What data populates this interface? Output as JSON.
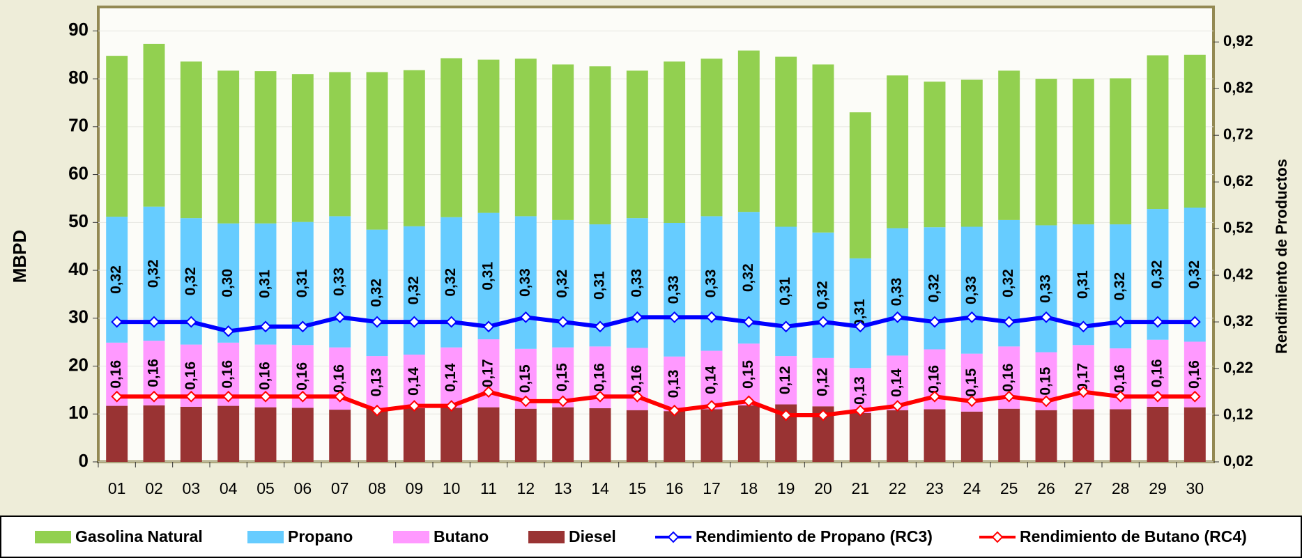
{
  "chart_data": {
    "type": "bar",
    "stacked": true,
    "y_label": "MBPD",
    "y2_label": "Rendimiento de Productos",
    "categories": [
      "01",
      "02",
      "03",
      "04",
      "05",
      "06",
      "07",
      "08",
      "09",
      "10",
      "11",
      "12",
      "13",
      "14",
      "15",
      "16",
      "17",
      "18",
      "19",
      "20",
      "21",
      "22",
      "23",
      "24",
      "25",
      "26",
      "27",
      "28",
      "29",
      "30"
    ],
    "ylim": [
      0,
      95
    ],
    "yticks": [
      0,
      10,
      20,
      30,
      40,
      50,
      60,
      70,
      80,
      90
    ],
    "y2lim": [
      0.02,
      0.995
    ],
    "y2ticks": [
      {
        "value": 0.02,
        "label": "0,02"
      },
      {
        "value": 0.12,
        "label": "0,12"
      },
      {
        "value": 0.22,
        "label": "0,22"
      },
      {
        "value": 0.32,
        "label": "0,32"
      },
      {
        "value": 0.42,
        "label": "0,42"
      },
      {
        "value": 0.52,
        "label": "0,52"
      },
      {
        "value": 0.62,
        "label": "0,62"
      },
      {
        "value": 0.72,
        "label": "0,72"
      },
      {
        "value": 0.82,
        "label": "0,82"
      },
      {
        "value": 0.92,
        "label": "0,92"
      }
    ],
    "grid": true,
    "legend": "bottom",
    "series": [
      {
        "name": "Gasolina Natural",
        "type": "bar",
        "color": "#92D050",
        "values": [
          33.6,
          34.0,
          32.7,
          31.9,
          31.8,
          30.9,
          30.1,
          32.9,
          32.6,
          33.2,
          32.0,
          32.9,
          32.5,
          33.0,
          30.8,
          33.7,
          32.9,
          33.7,
          35.5,
          35.1,
          30.5,
          31.9,
          30.4,
          30.7,
          31.2,
          30.6,
          30.4,
          30.5,
          32.1,
          31.9
        ]
      },
      {
        "name": "Propano",
        "type": "bar",
        "color": "#66CCFF",
        "values": [
          26.3,
          28.0,
          26.4,
          24.9,
          25.3,
          25.7,
          27.4,
          26.4,
          26.8,
          27.2,
          26.4,
          27.7,
          26.6,
          25.5,
          27.1,
          27.9,
          28.1,
          27.5,
          27.0,
          26.2,
          22.9,
          26.6,
          25.5,
          26.5,
          26.4,
          26.5,
          25.2,
          25.9,
          27.3,
          28.0
        ]
      },
      {
        "name": "Butano",
        "type": "bar",
        "color": "#FF99FF",
        "values": [
          13.2,
          13.5,
          13.0,
          13.2,
          13.1,
          13.1,
          13.0,
          11.0,
          11.2,
          12.6,
          14.2,
          12.5,
          12.5,
          12.9,
          13.0,
          11.4,
          12.2,
          12.9,
          10.1,
          10.1,
          9.4,
          11.4,
          12.5,
          12.1,
          13.0,
          12.1,
          13.4,
          12.7,
          14.0,
          13.7
        ]
      },
      {
        "name": "Diesel",
        "type": "bar",
        "color": "#993333",
        "values": [
          11.7,
          11.8,
          11.5,
          11.7,
          11.4,
          11.3,
          10.9,
          11.1,
          11.2,
          11.3,
          11.4,
          11.1,
          11.4,
          11.2,
          10.8,
          10.6,
          11.0,
          11.8,
          12.0,
          11.6,
          10.2,
          10.8,
          11.0,
          10.5,
          11.1,
          10.8,
          11.0,
          11.0,
          11.5,
          11.4
        ]
      },
      {
        "name": "Rendimiento de Propano (RC3)",
        "type": "line",
        "axis": "y2",
        "color": "#0000FF",
        "label_on": "Propano",
        "values": [
          0.32,
          0.32,
          0.32,
          0.3,
          0.31,
          0.31,
          0.33,
          0.32,
          0.32,
          0.32,
          0.31,
          0.33,
          0.32,
          0.31,
          0.33,
          0.33,
          0.33,
          0.32,
          0.31,
          0.32,
          0.31,
          0.33,
          0.32,
          0.33,
          0.32,
          0.33,
          0.31,
          0.32,
          0.32,
          0.32
        ],
        "value_labels": [
          "0,32",
          "0,32",
          "0,32",
          "0,30",
          "0,31",
          "0,31",
          "0,33",
          "0,32",
          "0,32",
          "0,32",
          "0,31",
          "0,33",
          "0,32",
          "0,31",
          "0,33",
          "0,33",
          "0,33",
          "0,32",
          "0,31",
          "0,32",
          "0,31",
          "0,33",
          "0,32",
          "0,33",
          "0,32",
          "0,33",
          "0,31",
          "0,32",
          "0,32",
          "0,32"
        ]
      },
      {
        "name": "Rendimiento de Butano (RC4)",
        "type": "line",
        "axis": "y2",
        "color": "#FF0000",
        "label_on": "Butano",
        "values": [
          0.16,
          0.16,
          0.16,
          0.16,
          0.16,
          0.16,
          0.16,
          0.13,
          0.14,
          0.14,
          0.17,
          0.15,
          0.15,
          0.16,
          0.16,
          0.13,
          0.14,
          0.15,
          0.12,
          0.12,
          0.13,
          0.14,
          0.16,
          0.15,
          0.16,
          0.15,
          0.17,
          0.16,
          0.16,
          0.16
        ],
        "value_labels": [
          "0,16",
          "0,16",
          "0,16",
          "0,16",
          "0,16",
          "0,16",
          "0,16",
          "0,13",
          "0,14",
          "0,14",
          "0,17",
          "0,15",
          "0,15",
          "0,16",
          "0,16",
          "0,13",
          "0,14",
          "0,15",
          "0,12",
          "0,12",
          "0,13",
          "0,14",
          "0,16",
          "0,15",
          "0,16",
          "0,15",
          "0,17",
          "0,16",
          "0,16",
          "0,16"
        ]
      }
    ]
  }
}
